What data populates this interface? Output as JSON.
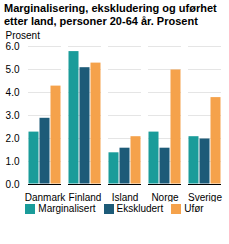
{
  "chart_data": {
    "type": "bar",
    "title": "Marginalisering, ekskludering og uførhet etter land, personer 20-64 år. Prosent",
    "y_label": "Prosent",
    "categories": [
      "Danmark",
      "Finland",
      "Island",
      "Norge",
      "Sverige"
    ],
    "series": [
      {
        "name": "Marginalisert",
        "color": "#1a9c9a",
        "values": [
          2.3,
          5.8,
          1.4,
          2.3,
          2.1
        ]
      },
      {
        "name": "Ekskludert",
        "color": "#1d5b78",
        "values": [
          2.9,
          5.1,
          1.6,
          1.6,
          2.0
        ]
      },
      {
        "name": "Ufør",
        "color": "#f5a24b",
        "values": [
          4.3,
          5.3,
          2.1,
          5.0,
          3.8
        ]
      }
    ],
    "ylim": [
      0,
      6
    ],
    "yticks": [
      0,
      1,
      2,
      3,
      4,
      5,
      6
    ],
    "grid": true,
    "legend": "bottom"
  }
}
